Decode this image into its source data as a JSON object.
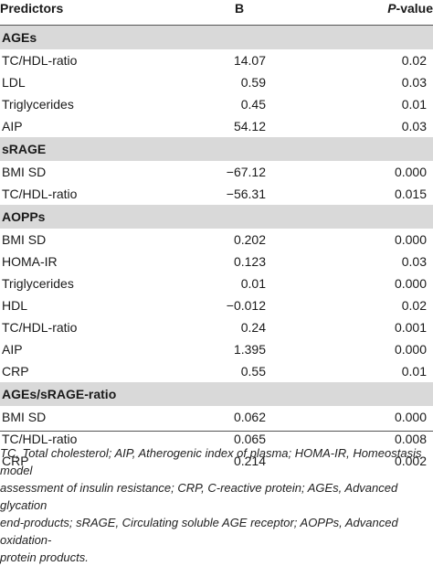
{
  "header": {
    "predictors": "Predictors",
    "b": "B",
    "p_italic": "P",
    "p_rest": "-value"
  },
  "sections": [
    {
      "title": "AGEs",
      "rows": [
        {
          "predictor": "TC/HDL-ratio",
          "b": "14.07",
          "p": "0.02"
        },
        {
          "predictor": "LDL",
          "b": "0.59",
          "p": "0.03"
        },
        {
          "predictor": "Triglycerides",
          "b": "0.45",
          "p": "0.01"
        },
        {
          "predictor": "AIP",
          "b": "54.12",
          "p": "0.03"
        }
      ]
    },
    {
      "title": "sRAGE",
      "rows": [
        {
          "predictor": "BMI SD",
          "b": "−67.12",
          "p": "0.000"
        },
        {
          "predictor": "TC/HDL-ratio",
          "b": "−56.31",
          "p": "0.015"
        }
      ]
    },
    {
      "title": "AOPPs",
      "rows": [
        {
          "predictor": "BMI SD",
          "b": "0.202",
          "p": "0.000"
        },
        {
          "predictor": "HOMA-IR",
          "b": "0.123",
          "p": "0.03"
        },
        {
          "predictor": "Triglycerides",
          "b": "0.01",
          "p": "0.000"
        },
        {
          "predictor": "HDL",
          "b": "−0.012",
          "p": "0.02"
        },
        {
          "predictor": "TC/HDL-ratio",
          "b": "0.24",
          "p": "0.001"
        },
        {
          "predictor": "AIP",
          "b": "1.395",
          "p": "0.000"
        },
        {
          "predictor": "CRP",
          "b": "0.55",
          "p": "0.01"
        }
      ]
    },
    {
      "title": "AGEs/sRAGE-ratio",
      "rows": [
        {
          "predictor": "BMI SD",
          "b": "0.062",
          "p": "0.000"
        },
        {
          "predictor": "TC/HDL-ratio",
          "b": "0.065",
          "p": "0.008"
        },
        {
          "predictor": "CRP",
          "b": "0.214",
          "p": "0.002"
        }
      ]
    }
  ],
  "footnote": {
    "line1": "TC, Total cholesterol; AIP, Atherogenic index of plasma; HOMA-IR, Homeostasis model",
    "line2": "assessment of insulin resistance; CRP, C-reactive protein; AGEs, Advanced glycation",
    "line3": "end-products; sRAGE, Circulating soluble AGE receptor; AOPPs, Advanced oxidation-",
    "line4": "protein products."
  }
}
